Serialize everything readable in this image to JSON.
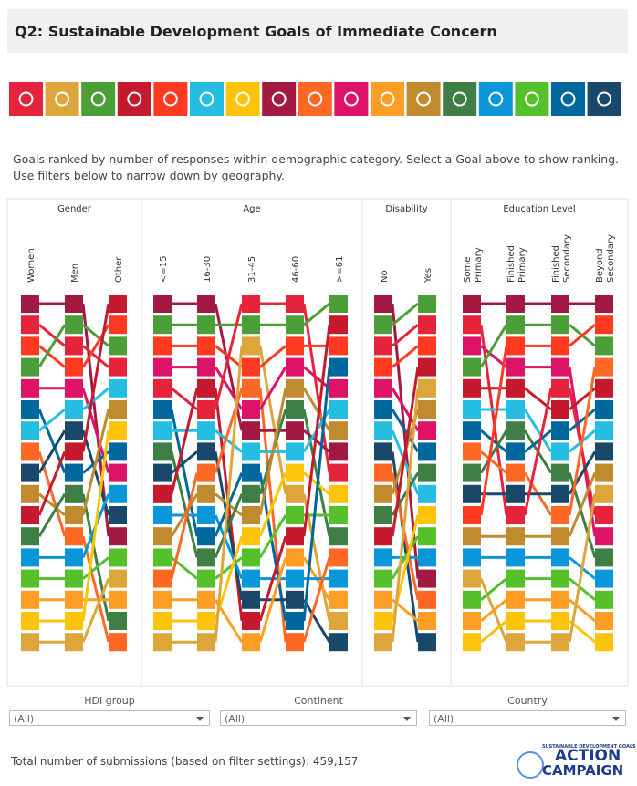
{
  "header": {
    "title": "Q2: Sustainable Development Goals of Immediate Concern"
  },
  "goals": [
    "#e5243b",
    "#dda63a",
    "#4c9f38",
    "#c5192d",
    "#ff3a21",
    "#26bde2",
    "#fcc30b",
    "#a21942",
    "#fd6925",
    "#dd1367",
    "#fd9d24",
    "#bf8b2e",
    "#3f7e44",
    "#0a97d9",
    "#56c02b",
    "#00689d",
    "#19486a"
  ],
  "description": "Goals ranked by number of responses within demographic category. Select a Goal above to show ranking. Use filters below to narrow down by geography.",
  "groups": [
    {
      "title": "Gender",
      "columns": [
        {
          "label_lines": [
            "Women"
          ],
          "ranking": [
            "#a21942",
            "#e5243b",
            "#ff3a21",
            "#4c9f38",
            "#dd1367",
            "#00689d",
            "#26bde2",
            "#fd6925",
            "#19486a",
            "#bf8b2e",
            "#c5192d",
            "#3f7e44",
            "#0a97d9",
            "#56c02b",
            "#fd9d24",
            "#fcc30b",
            "#dda63a"
          ]
        },
        {
          "label_lines": [
            "Men"
          ],
          "ranking": [
            "#a21942",
            "#4c9f38",
            "#e5243b",
            "#ff3a21",
            "#dd1367",
            "#26bde2",
            "#19486a",
            "#c5192d",
            "#00689d",
            "#3f7e44",
            "#bf8b2e",
            "#fd6925",
            "#0a97d9",
            "#56c02b",
            "#fd9d24",
            "#fcc30b",
            "#dda63a"
          ]
        },
        {
          "label_lines": [
            "Other"
          ],
          "ranking": [
            "#c5192d",
            "#ff3a21",
            "#4c9f38",
            "#e5243b",
            "#26bde2",
            "#bf8b2e",
            "#fcc30b",
            "#00689d",
            "#dd1367",
            "#0a97d9",
            "#19486a",
            "#a21942",
            "#56c02b",
            "#dda63a",
            "#fd9d24",
            "#3f7e44",
            "#fd6925"
          ]
        }
      ]
    },
    {
      "title": "Age",
      "columns": [
        {
          "label_lines": [
            "<=15"
          ],
          "ranking": [
            "#a21942",
            "#4c9f38",
            "#ff3a21",
            "#dd1367",
            "#e5243b",
            "#00689d",
            "#26bde2",
            "#3f7e44",
            "#19486a",
            "#c5192d",
            "#0a97d9",
            "#bf8b2e",
            "#56c02b",
            "#fd6925",
            "#fd9d24",
            "#fcc30b",
            "#dda63a"
          ]
        },
        {
          "label_lines": [
            "16-30"
          ],
          "ranking": [
            "#a21942",
            "#4c9f38",
            "#ff3a21",
            "#dd1367",
            "#c5192d",
            "#e5243b",
            "#26bde2",
            "#19486a",
            "#fd6925",
            "#bf8b2e",
            "#0a97d9",
            "#00689d",
            "#3f7e44",
            "#56c02b",
            "#fd9d24",
            "#fcc30b",
            "#dda63a"
          ]
        },
        {
          "label_lines": [
            "31-45"
          ],
          "ranking": [
            "#e5243b",
            "#4c9f38",
            "#dda63a",
            "#ff3a21",
            "#fd6925",
            "#dd1367",
            "#a21942",
            "#26bde2",
            "#00689d",
            "#3f7e44",
            "#bf8b2e",
            "#fcc30b",
            "#56c02b",
            "#0a97d9",
            "#19486a",
            "#c5192d",
            "#fd9d24"
          ]
        },
        {
          "label_lines": [
            "46-60"
          ],
          "ranking": [
            "#e5243b",
            "#4c9f38",
            "#ff3a21",
            "#dd1367",
            "#bf8b2e",
            "#3f7e44",
            "#a21942",
            "#26bde2",
            "#fcc30b",
            "#dda63a",
            "#56c02b",
            "#c5192d",
            "#fd9d24",
            "#0a97d9",
            "#19486a",
            "#00689d",
            "#fd6925"
          ]
        },
        {
          "label_lines": [
            ">=61"
          ],
          "ranking": [
            "#4c9f38",
            "#c5192d",
            "#ff3a21",
            "#00689d",
            "#dd1367",
            "#26bde2",
            "#bf8b2e",
            "#a21942",
            "#e5243b",
            "#fcc30b",
            "#56c02b",
            "#3f7e44",
            "#fd6925",
            "#0a97d9",
            "#fd9d24",
            "#dda63a",
            "#19486a"
          ]
        }
      ]
    },
    {
      "title": "Disability",
      "columns": [
        {
          "label_lines": [
            "No"
          ],
          "ranking": [
            "#a21942",
            "#4c9f38",
            "#e5243b",
            "#ff3a21",
            "#dd1367",
            "#00689d",
            "#26bde2",
            "#19486a",
            "#fd6925",
            "#bf8b2e",
            "#3f7e44",
            "#c5192d",
            "#0a97d9",
            "#56c02b",
            "#fd9d24",
            "#fcc30b",
            "#dda63a"
          ]
        },
        {
          "label_lines": [
            "Yes"
          ],
          "ranking": [
            "#4c9f38",
            "#e5243b",
            "#ff3a21",
            "#c5192d",
            "#dda63a",
            "#bf8b2e",
            "#dd1367",
            "#00689d",
            "#3f7e44",
            "#26bde2",
            "#fcc30b",
            "#56c02b",
            "#0a97d9",
            "#a21942",
            "#fd6925",
            "#fd9d24",
            "#19486a"
          ]
        }
      ]
    },
    {
      "title": "Education Level",
      "columns": [
        {
          "label_lines": [
            "Some",
            "Primary"
          ],
          "ranking": [
            "#a21942",
            "#e5243b",
            "#dd1367",
            "#4c9f38",
            "#c5192d",
            "#26bde2",
            "#00689d",
            "#fd6925",
            "#3f7e44",
            "#19486a",
            "#ff3a21",
            "#bf8b2e",
            "#0a97d9",
            "#dda63a",
            "#56c02b",
            "#fd9d24",
            "#fcc30b"
          ]
        },
        {
          "label_lines": [
            "Finished",
            "Primary"
          ],
          "ranking": [
            "#a21942",
            "#4c9f38",
            "#ff3a21",
            "#dd1367",
            "#c5192d",
            "#26bde2",
            "#3f7e44",
            "#00689d",
            "#fd6925",
            "#19486a",
            "#e5243b",
            "#bf8b2e",
            "#0a97d9",
            "#56c02b",
            "#fd9d24",
            "#fcc30b",
            "#dda63a"
          ]
        },
        {
          "label_lines": [
            "Finished",
            "Secondary"
          ],
          "ranking": [
            "#a21942",
            "#4c9f38",
            "#ff3a21",
            "#dd1367",
            "#e5243b",
            "#c5192d",
            "#00689d",
            "#26bde2",
            "#3f7e44",
            "#19486a",
            "#fd6925",
            "#bf8b2e",
            "#0a97d9",
            "#56c02b",
            "#fd9d24",
            "#fcc30b",
            "#dda63a"
          ]
        },
        {
          "label_lines": [
            "Beyond",
            "Secondary"
          ],
          "ranking": [
            "#a21942",
            "#ff3a21",
            "#4c9f38",
            "#fd6925",
            "#c5192d",
            "#00689d",
            "#26bde2",
            "#19486a",
            "#bf8b2e",
            "#dda63a",
            "#e5243b",
            "#dd1367",
            "#3f7e44",
            "#0a97d9",
            "#56c02b",
            "#fd9d24",
            "#fcc30b"
          ]
        }
      ]
    }
  ],
  "filters": [
    {
      "label": "HDI group",
      "value": "(All)"
    },
    {
      "label": "Continent",
      "value": "(All)"
    },
    {
      "label": "Country",
      "value": "(All)"
    }
  ],
  "footer": {
    "total": "Total number of submissions (based on filter settings): 459,157"
  },
  "logo": {
    "top": "SUSTAINABLE DEVELOPMENT GOALS",
    "line1": "ACTION",
    "line2": "CAMPAIGN"
  }
}
